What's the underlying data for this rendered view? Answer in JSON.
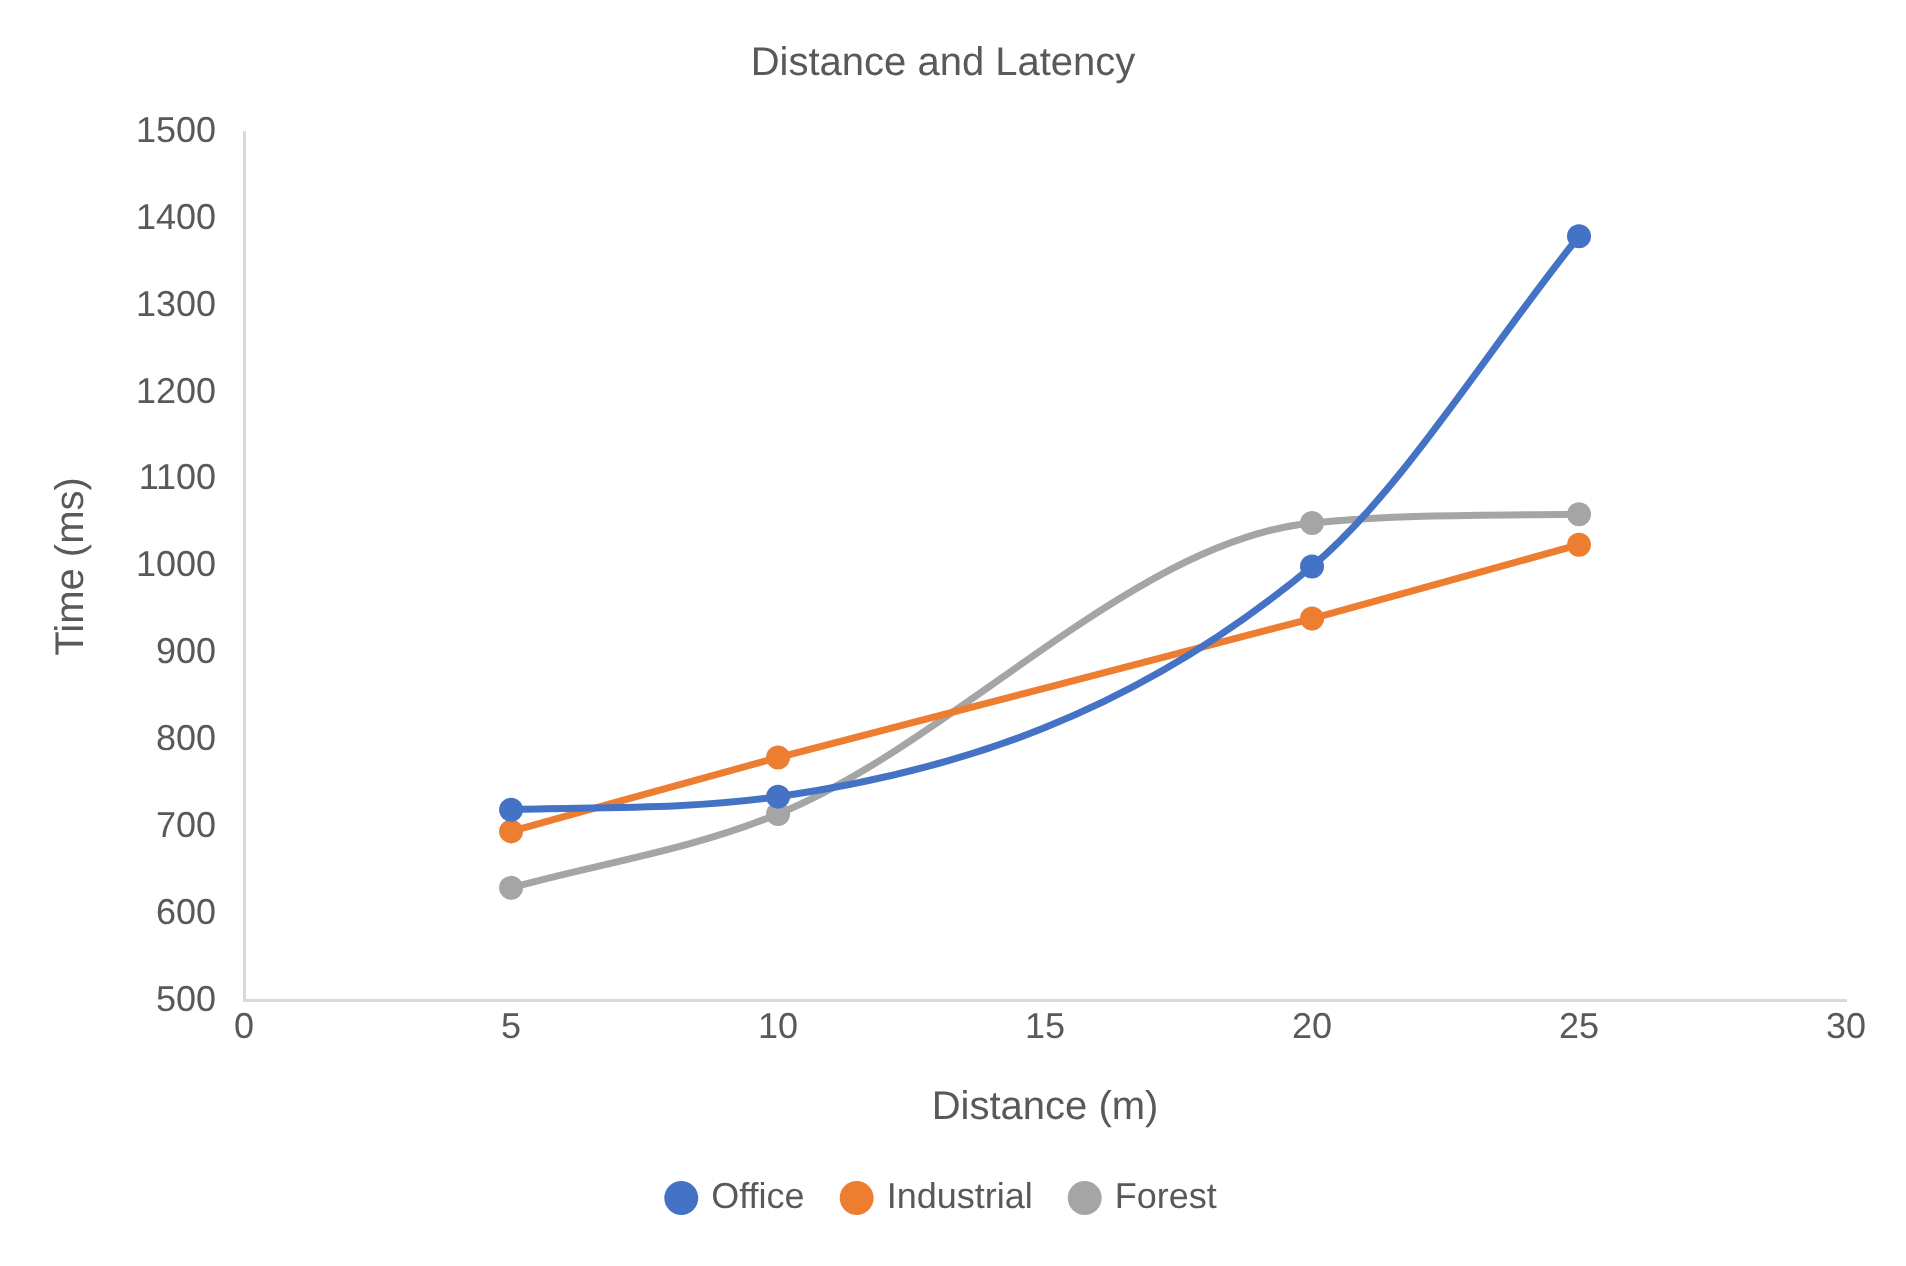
{
  "chart_data": {
    "type": "line",
    "title": "Distance and Latency",
    "xlabel": "Distance (m)",
    "ylabel": "Time (ms)",
    "x": [
      5,
      10,
      20,
      25
    ],
    "series": [
      {
        "name": "Office",
        "color": "#4472c4",
        "values": [
          720,
          735,
          1000,
          1380
        ]
      },
      {
        "name": "Industrial",
        "color": "#ed7d31",
        "values": [
          695,
          780,
          940,
          1025
        ]
      },
      {
        "name": "Forest",
        "color": "#a5a5a5",
        "values": [
          630,
          715,
          1050,
          1060
        ]
      }
    ],
    "xlim": [
      0,
      30
    ],
    "xticks": [
      0,
      5,
      10,
      15,
      20,
      25,
      30
    ],
    "ylim": [
      500,
      1500
    ],
    "yticks": [
      500,
      600,
      700,
      800,
      900,
      1000,
      1100,
      1200,
      1300,
      1400,
      1500
    ],
    "grid": false,
    "legend": "bottom",
    "marker": "circle",
    "line_style": "solid"
  }
}
